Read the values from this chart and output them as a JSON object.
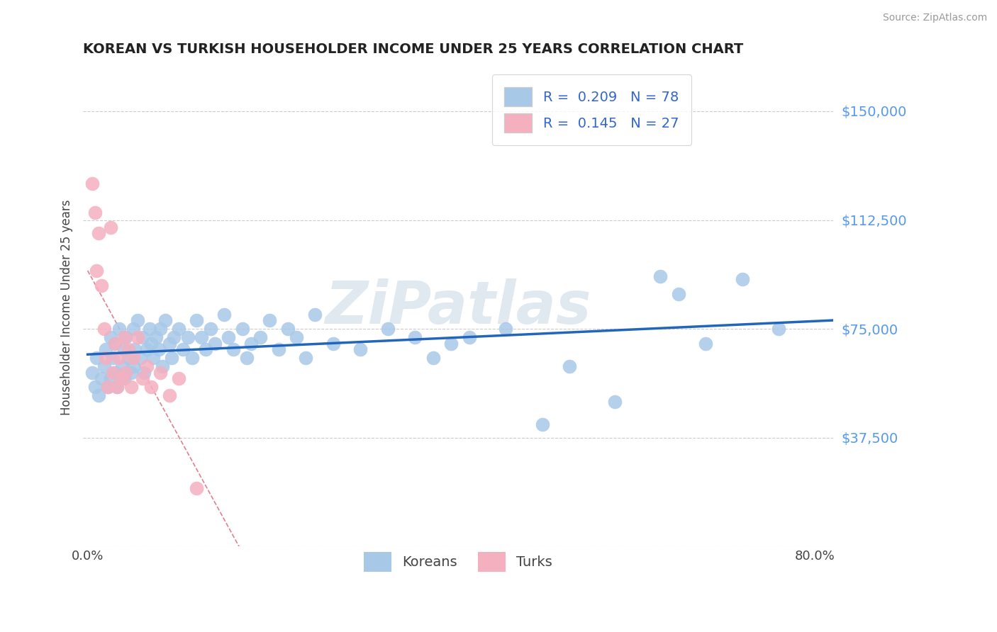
{
  "title": "KOREAN VS TURKISH HOUSEHOLDER INCOME UNDER 25 YEARS CORRELATION CHART",
  "source": "Source: ZipAtlas.com",
  "ylabel": "Householder Income Under 25 years",
  "xlim": [
    -0.005,
    0.82
  ],
  "ylim": [
    0,
    165000
  ],
  "yticks": [
    0,
    37500,
    75000,
    112500,
    150000
  ],
  "korean_color": "#a8c8e8",
  "turkish_color": "#f5b0c0",
  "korean_R": 0.209,
  "korean_N": 78,
  "turkish_R": 0.145,
  "turkish_N": 27,
  "regression_line_color": "#2266bb",
  "turkish_reg_color": "#e08090",
  "grid_color": "#cccccc",
  "ytick_color": "#5599ee",
  "title_color": "#222222",
  "source_color": "#999999",
  "watermark_color": "#e0e8f0",
  "korean_x": [
    0.005,
    0.008,
    0.01,
    0.012,
    0.015,
    0.018,
    0.02,
    0.022,
    0.025,
    0.025,
    0.028,
    0.03,
    0.03,
    0.032,
    0.035,
    0.038,
    0.04,
    0.04,
    0.042,
    0.045,
    0.048,
    0.05,
    0.05,
    0.052,
    0.055,
    0.058,
    0.06,
    0.062,
    0.065,
    0.068,
    0.07,
    0.072,
    0.075,
    0.078,
    0.08,
    0.082,
    0.085,
    0.09,
    0.092,
    0.095,
    0.1,
    0.105,
    0.11,
    0.115,
    0.12,
    0.125,
    0.13,
    0.135,
    0.14,
    0.15,
    0.155,
    0.16,
    0.17,
    0.175,
    0.18,
    0.19,
    0.2,
    0.21,
    0.22,
    0.23,
    0.24,
    0.25,
    0.27,
    0.3,
    0.33,
    0.36,
    0.38,
    0.4,
    0.42,
    0.46,
    0.5,
    0.53,
    0.58,
    0.63,
    0.65,
    0.68,
    0.72,
    0.76
  ],
  "korean_y": [
    60000,
    55000,
    65000,
    52000,
    58000,
    62000,
    68000,
    55000,
    72000,
    58000,
    65000,
    70000,
    60000,
    55000,
    75000,
    62000,
    68000,
    58000,
    72000,
    65000,
    60000,
    75000,
    62000,
    68000,
    78000,
    65000,
    72000,
    60000,
    68000,
    75000,
    70000,
    65000,
    72000,
    68000,
    75000,
    62000,
    78000,
    70000,
    65000,
    72000,
    75000,
    68000,
    72000,
    65000,
    78000,
    72000,
    68000,
    75000,
    70000,
    80000,
    72000,
    68000,
    75000,
    65000,
    70000,
    72000,
    78000,
    68000,
    75000,
    72000,
    65000,
    80000,
    70000,
    68000,
    75000,
    72000,
    65000,
    70000,
    72000,
    75000,
    42000,
    62000,
    50000,
    93000,
    87000,
    70000,
    92000,
    75000
  ],
  "turkish_x": [
    0.005,
    0.008,
    0.01,
    0.012,
    0.015,
    0.018,
    0.02,
    0.022,
    0.025,
    0.028,
    0.03,
    0.032,
    0.035,
    0.038,
    0.04,
    0.042,
    0.045,
    0.048,
    0.05,
    0.055,
    0.06,
    0.065,
    0.07,
    0.08,
    0.09,
    0.1,
    0.12
  ],
  "turkish_y": [
    125000,
    115000,
    95000,
    108000,
    90000,
    75000,
    65000,
    55000,
    110000,
    60000,
    70000,
    55000,
    65000,
    58000,
    72000,
    60000,
    68000,
    55000,
    65000,
    72000,
    58000,
    62000,
    55000,
    60000,
    52000,
    58000,
    20000
  ]
}
